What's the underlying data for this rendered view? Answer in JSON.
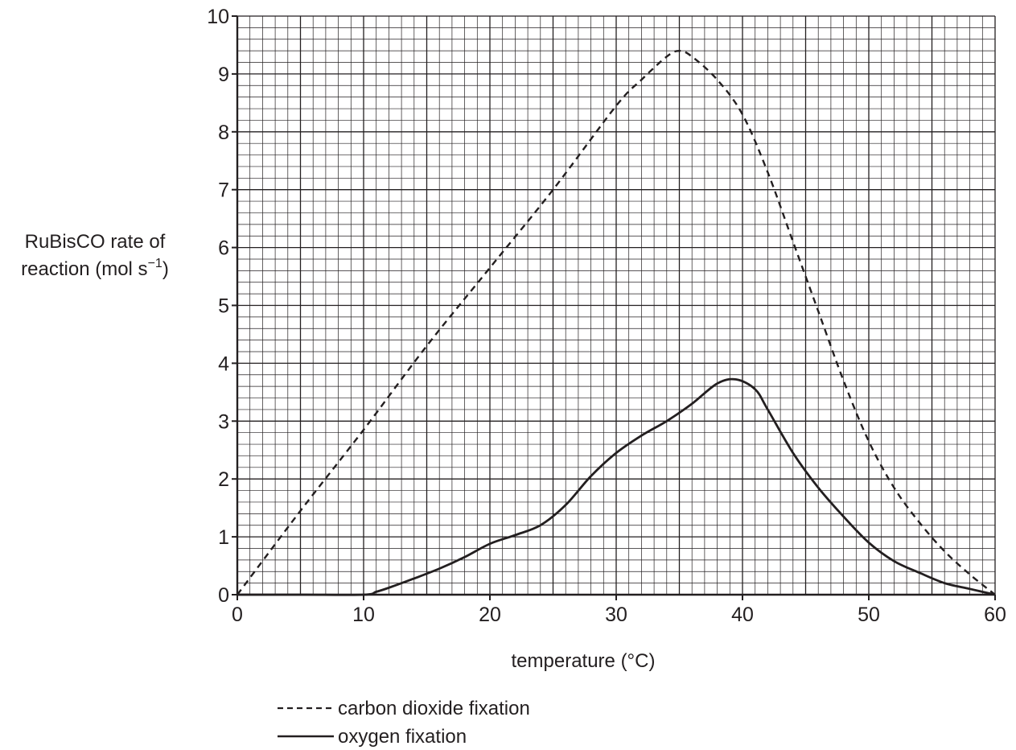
{
  "chart_data": {
    "type": "line",
    "xlabel": "temperature (°C)",
    "ylabel_line1": "RuBisCO rate of",
    "ylabel_line2": "reaction (mol s",
    "ylabel_sup": "−1",
    "ylabel_close": ")",
    "xlim": [
      0,
      60
    ],
    "ylim": [
      0,
      10
    ],
    "x_ticks": [
      0,
      10,
      20,
      30,
      40,
      50,
      60
    ],
    "y_ticks": [
      0,
      1,
      2,
      3,
      4,
      5,
      6,
      7,
      8,
      9,
      10
    ],
    "grid": true,
    "legend_position": "bottom-left below axis",
    "series": [
      {
        "name": "carbon dioxide fixation",
        "style": "dashed",
        "color": "#231f20",
        "points": [
          [
            0,
            0
          ],
          [
            5,
            1.45
          ],
          [
            10,
            2.85
          ],
          [
            15,
            4.3
          ],
          [
            20,
            5.65
          ],
          [
            25,
            7.0
          ],
          [
            30,
            8.45
          ],
          [
            32,
            8.9
          ],
          [
            34,
            9.3
          ],
          [
            35,
            9.4
          ],
          [
            36,
            9.3
          ],
          [
            38,
            8.9
          ],
          [
            40,
            8.3
          ],
          [
            42,
            7.3
          ],
          [
            44,
            6.1
          ],
          [
            46,
            4.9
          ],
          [
            48,
            3.7
          ],
          [
            50,
            2.65
          ],
          [
            52,
            1.85
          ],
          [
            54,
            1.25
          ],
          [
            56,
            0.75
          ],
          [
            58,
            0.35
          ],
          [
            60,
            0
          ]
        ]
      },
      {
        "name": "oxygen fixation",
        "style": "solid",
        "color": "#231f20",
        "points": [
          [
            0,
            0
          ],
          [
            5,
            0
          ],
          [
            10,
            0
          ],
          [
            11,
            0.05
          ],
          [
            12,
            0.12
          ],
          [
            14,
            0.28
          ],
          [
            16,
            0.45
          ],
          [
            18,
            0.65
          ],
          [
            20,
            0.88
          ],
          [
            22,
            1.03
          ],
          [
            24,
            1.2
          ],
          [
            26,
            1.55
          ],
          [
            28,
            2.05
          ],
          [
            30,
            2.45
          ],
          [
            32,
            2.75
          ],
          [
            34,
            3.0
          ],
          [
            36,
            3.3
          ],
          [
            38,
            3.65
          ],
          [
            39.5,
            3.72
          ],
          [
            41,
            3.55
          ],
          [
            42,
            3.2
          ],
          [
            44,
            2.45
          ],
          [
            46,
            1.85
          ],
          [
            48,
            1.35
          ],
          [
            50,
            0.9
          ],
          [
            52,
            0.58
          ],
          [
            54,
            0.38
          ],
          [
            56,
            0.2
          ],
          [
            58,
            0.1
          ],
          [
            60,
            0
          ]
        ]
      }
    ]
  }
}
